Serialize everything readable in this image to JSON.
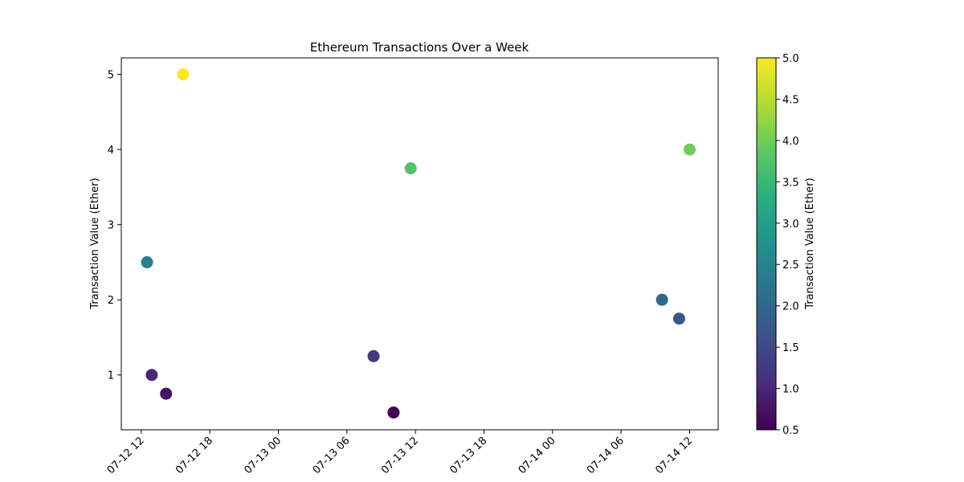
{
  "chart_data": {
    "type": "scatter",
    "title": "Ethereum Transactions Over a Week",
    "xlabel": "",
    "ylabel": "Transaction Value (Ether)",
    "x_tick_labels": [
      "07-12 12",
      "07-12 18",
      "07-13 00",
      "07-13 06",
      "07-13 12",
      "07-13 18",
      "07-14 00",
      "07-14 06",
      "07-14 12"
    ],
    "x_tick_values": [
      "2024-07-12 12:00",
      "2024-07-12 18:00",
      "2024-07-13 00:00",
      "2024-07-13 06:00",
      "2024-07-13 12:00",
      "2024-07-13 18:00",
      "2024-07-14 00:00",
      "2024-07-14 06:00",
      "2024-07-14 12:00"
    ],
    "xlim": [
      "2024-07-12 10:15",
      "2024-07-14 14:30"
    ],
    "y_ticks": [
      1,
      2,
      3,
      4,
      5
    ],
    "ylim": [
      0.27,
      5.22
    ],
    "points": [
      {
        "x": "2024-07-12 12:30",
        "y": 2.5
      },
      {
        "x": "2024-07-12 12:55",
        "y": 1.0
      },
      {
        "x": "2024-07-12 14:10",
        "y": 0.75
      },
      {
        "x": "2024-07-12 15:40",
        "y": 5.0
      },
      {
        "x": "2024-07-13 08:20",
        "y": 1.25
      },
      {
        "x": "2024-07-13 10:05",
        "y": 0.5
      },
      {
        "x": "2024-07-13 11:35",
        "y": 3.75
      },
      {
        "x": "2024-07-14 09:35",
        "y": 2.0
      },
      {
        "x": "2024-07-14 11:05",
        "y": 1.75
      },
      {
        "x": "2024-07-14 12:00",
        "y": 4.0
      }
    ],
    "colormap": "viridis",
    "colorbar": {
      "label": "Transaction Value (Ether)",
      "range": [
        0.5,
        5.0
      ],
      "ticks": [
        "0.5",
        "1.0",
        "1.5",
        "2.0",
        "2.5",
        "3.0",
        "3.5",
        "4.0",
        "4.5",
        "5.0"
      ]
    },
    "grid": false
  }
}
